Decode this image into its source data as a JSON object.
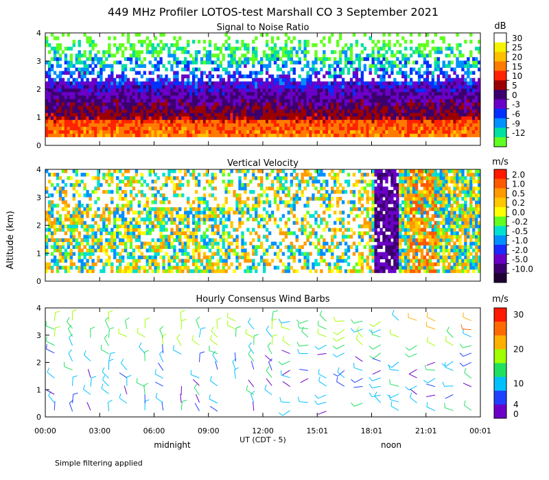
{
  "figure": {
    "title": "449 MHz Profiler LOTOS-test Marshall CO  3 September 2021",
    "ylabel": "Altitude (km)",
    "xlabel": "UT  (CDT - 5)",
    "x_ticks": [
      "00:00",
      "03:00",
      "06:00",
      "09:00",
      "12:00",
      "15:01",
      "18:01",
      "21:01",
      "00:01"
    ],
    "local_marks": [
      "midnight",
      "noon"
    ],
    "footnote": "Simple filtering applied"
  },
  "chart_data": [
    {
      "type": "heatmap",
      "title": "Signal to Noise Ratio",
      "unit": "dB",
      "xlabel": "UT  (CDT - 5)",
      "ylabel": "Altitude (km)",
      "xlim": [
        0,
        24
      ],
      "ylim": [
        0,
        4
      ],
      "y_ticks": [
        0,
        1,
        2,
        3,
        4
      ],
      "colorbar_labels": [
        "30",
        "25",
        "20",
        "15",
        "10",
        "5",
        "0",
        "-3",
        "-6",
        "-9",
        "-12"
      ],
      "colorbar_colors": [
        "#ffffff",
        "#f4f400",
        "#ffc000",
        "#ff7a00",
        "#ff2200",
        "#9b0000",
        "#3c006e",
        "#6a00c8",
        "#0030ff",
        "#0090ff",
        "#00e0a0",
        "#60ff20"
      ]
    },
    {
      "type": "heatmap",
      "title": "Vertical Velocity",
      "unit": "m/s",
      "xlabel": "UT  (CDT - 5)",
      "ylabel": "Altitude (km)",
      "xlim": [
        0,
        24
      ],
      "ylim": [
        0,
        4
      ],
      "y_ticks": [
        0,
        1,
        2,
        3,
        4
      ],
      "colorbar_labels": [
        "2.0",
        "1.0",
        "0.5",
        "0.2",
        "0.0",
        "-0.2",
        "-0.5",
        "-1.0",
        "-2.0",
        "-5.0",
        "-10.0"
      ],
      "colorbar_colors": [
        "#ff1a00",
        "#ff5a00",
        "#ff9a00",
        "#ffc800",
        "#ffff00",
        "#60ff20",
        "#00e0d0",
        "#0090ff",
        "#1a2aff",
        "#6a00c8",
        "#3c006e",
        "#1e0032"
      ]
    },
    {
      "type": "scatter",
      "title": "Hourly Consensus Wind Barbs",
      "unit": "m/s",
      "xlabel": "UT  (CDT - 5)",
      "ylabel": "Altitude (km)",
      "xlim": [
        0,
        24
      ],
      "ylim": [
        0,
        4
      ],
      "y_ticks": [
        0,
        1,
        2,
        3,
        4
      ],
      "colorbar_labels": [
        "30",
        "20",
        "10",
        "4",
        "0"
      ],
      "colorbar_colors": [
        "#ff1a00",
        "#ff6a00",
        "#ffb000",
        "#a0ff00",
        "#20e060",
        "#00c0ff",
        "#2040ff",
        "#6a00c8"
      ],
      "colorbar_levels": [
        0,
        4,
        10,
        20,
        30
      ]
    }
  ]
}
